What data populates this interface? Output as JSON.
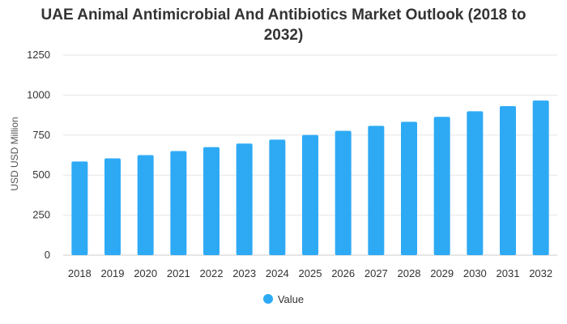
{
  "chart_data": {
    "type": "bar",
    "title_line1": "UAE Animal Antimicrobial And Antibiotics Market Outlook (2018 to",
    "title_line2": "2032)",
    "ylabel": "USD USD Million",
    "xlabel": "",
    "categories": [
      "2018",
      "2019",
      "2020",
      "2021",
      "2022",
      "2023",
      "2024",
      "2025",
      "2026",
      "2027",
      "2028",
      "2029",
      "2030",
      "2031",
      "2032"
    ],
    "series": [
      {
        "name": "Value",
        "values": [
          585,
          605,
          625,
          650,
          675,
          697,
          722,
          751,
          777,
          808,
          833,
          864,
          899,
          931,
          966
        ]
      }
    ],
    "ylim": [
      0,
      1250
    ],
    "yticks": [
      "0",
      "250",
      "500",
      "750",
      "1000",
      "1250"
    ],
    "grid": true,
    "legend_position": "bottom",
    "colors": {
      "bar": "#2eaaf5",
      "grid": "#e6e6e6"
    }
  }
}
